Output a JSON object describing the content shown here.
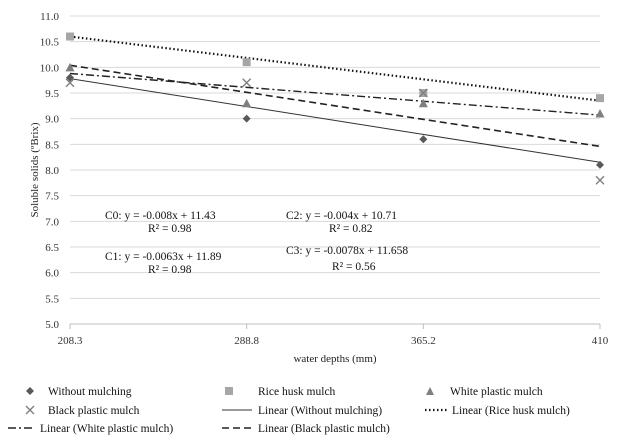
{
  "chart_data": {
    "type": "scatter",
    "xlabel": "water depths (mm)",
    "ylabel": "Soluble solids (ºBrix)",
    "x_ticks": [
      "208.3",
      "288.8",
      "365.2",
      "410"
    ],
    "ylim": [
      5.0,
      11.0
    ],
    "y_ticks": [
      "5.0",
      "5.5",
      "6.0",
      "6.5",
      "7.0",
      "7.5",
      "8.0",
      "8.5",
      "9.0",
      "9.5",
      "10.0",
      "10.5",
      "11.0"
    ],
    "grid": true,
    "legend_position": "bottom",
    "series": [
      {
        "name": "Without mulching",
        "marker": "diamond",
        "color": "#595959",
        "values": [
          9.8,
          9.0,
          8.6,
          8.1
        ]
      },
      {
        "name": "Rice husk mulch",
        "marker": "square",
        "color": "#a6a6a6",
        "values": [
          10.6,
          10.1,
          9.5,
          9.4
        ]
      },
      {
        "name": "White plastic mulch",
        "marker": "triangle",
        "color": "#7f7f7f",
        "values": [
          10.0,
          9.3,
          9.3,
          9.1
        ]
      },
      {
        "name": "Black plastic mulch",
        "marker": "x",
        "color": "#7f7f7f",
        "values": [
          9.7,
          9.7,
          9.5,
          7.8
        ]
      }
    ],
    "trendlines": [
      {
        "name": "Linear (Without mulching)",
        "style": "solid",
        "start": 9.78,
        "end": 8.15
      },
      {
        "name": "Linear (Rice husk mulch)",
        "style": "dotted",
        "start": 10.6,
        "end": 9.35
      },
      {
        "name": "Linear (White plastic mulch)",
        "style": "dashdot",
        "start": 9.88,
        "end": 9.07
      },
      {
        "name": "Linear (Black plastic mulch)",
        "style": "dashed",
        "start": 10.04,
        "end": 8.46
      }
    ],
    "annotations": [
      {
        "line1": "C0: y = -0.008x + 11.43",
        "line2": "R² = 0.98"
      },
      {
        "line1": "C1: y = -0.0063x + 11.89",
        "line2": "R² = 0.98"
      },
      {
        "line1": "C2: y = -0.004x + 10.71",
        "line2": "R² = 0.82"
      },
      {
        "line1": "C3: y = -0.0078x + 11.658",
        "line2": "R² = 0.56"
      }
    ]
  }
}
